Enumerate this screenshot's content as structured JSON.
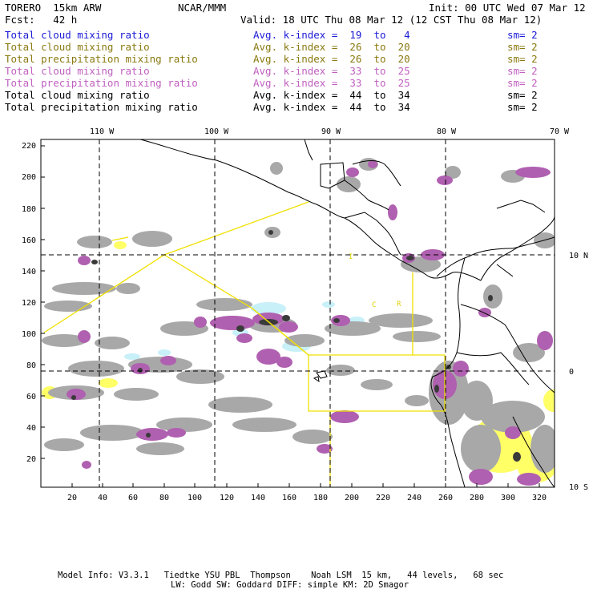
{
  "header": {
    "model": "TORERO  15km ARW",
    "org": "NCAR/MMM",
    "init": "Init: 00 UTC Wed 07 Mar 12",
    "fcst": "Fcst:   42 h",
    "valid": "Valid: 18 UTC Thu 08 Mar 12 (12 CST Thu 08 Mar 12)"
  },
  "fields": [
    {
      "name": "Total cloud mixing ratio",
      "index": "Avg. k-index =  19  to   4",
      "sm": "sm= 2",
      "color": "#1a1ad6"
    },
    {
      "name": "Total cloud mixing ratio",
      "index": "Avg. k-index =  26  to  20",
      "sm": "sm= 2",
      "color": "#8a7a10"
    },
    {
      "name": "Total precipitation mixing ratio",
      "index": "Avg. k-index =  26  to  20",
      "sm": "sm= 2",
      "color": "#8a7a10"
    },
    {
      "name": "Total cloud mixing ratio",
      "index": "Avg. k-index =  33  to  25",
      "sm": "sm= 2",
      "color": "#c060c0"
    },
    {
      "name": "Total precipitation mixing ratio",
      "index": "Avg. k-index =  33  to  25",
      "sm": "sm= 2",
      "color": "#c060c0"
    },
    {
      "name": "Total cloud mixing ratio",
      "index": "Avg. k-index =  44  to  34",
      "sm": "sm= 2",
      "color": "#000000"
    },
    {
      "name": "Total precipitation mixing ratio",
      "index": "Avg. k-index =  44  to  34",
      "sm": "sm= 2",
      "color": "#000000"
    }
  ],
  "map": {
    "lon_labels": [
      "110 W",
      "100 W",
      "90 W",
      "80 W",
      "70 W"
    ],
    "lat_labels": [
      "10 N",
      "0",
      "10 S"
    ],
    "y_ticks": [
      "220",
      "200",
      "180",
      "160",
      "140",
      "120",
      "100",
      "80",
      "60",
      "40",
      "20"
    ],
    "x_ticks": [
      "20",
      "40",
      "60",
      "80",
      "100",
      "120",
      "140",
      "160",
      "180",
      "200",
      "220",
      "240",
      "260",
      "280",
      "300",
      "320"
    ],
    "labels": [
      "I",
      "C",
      "R"
    ],
    "colors": {
      "cloud": "#a8a8a8",
      "precip": "#b060b0",
      "light": "#ffff66",
      "cyan": "#c8f0f8",
      "box": "#f0e000",
      "grid": "#000000"
    }
  },
  "footer": {
    "line1": "Model Info: V3.3.1   Tiedtke YSU PBL  Thompson    Noah LSM  15 km,   44 levels,   68 sec",
    "line2": "LW: Godd SW: Goddard DIFF: simple KM: 2D Smagor"
  }
}
